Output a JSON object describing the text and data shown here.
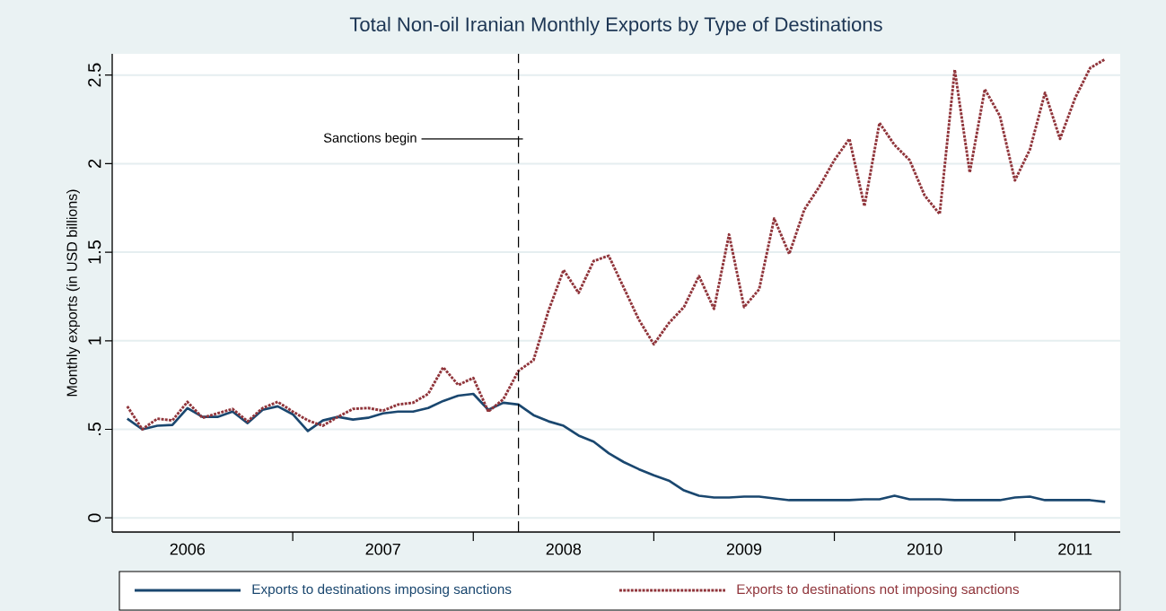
{
  "chart_data": {
    "type": "line",
    "title": "Total Non-oil Iranian Monthly Exports by Type of Destinations",
    "ylabel": "Monthly exports (in USD billions)",
    "x": [
      "2006-02",
      "2006-03",
      "2006-04",
      "2006-05",
      "2006-06",
      "2006-07",
      "2006-08",
      "2006-09",
      "2006-10",
      "2006-11",
      "2006-12",
      "2007-01",
      "2007-02",
      "2007-03",
      "2007-04",
      "2007-05",
      "2007-06",
      "2007-07",
      "2007-08",
      "2007-09",
      "2007-10",
      "2007-11",
      "2007-12",
      "2008-01",
      "2008-02",
      "2008-03",
      "2008-04",
      "2008-05",
      "2008-06",
      "2008-07",
      "2008-08",
      "2008-09",
      "2008-10",
      "2008-11",
      "2008-12",
      "2009-01",
      "2009-02",
      "2009-03",
      "2009-04",
      "2009-05",
      "2009-06",
      "2009-07",
      "2009-08",
      "2009-09",
      "2009-10",
      "2009-11",
      "2009-12",
      "2010-01",
      "2010-02",
      "2010-03",
      "2010-04",
      "2010-05",
      "2010-06",
      "2010-07",
      "2010-08",
      "2010-09",
      "2010-10",
      "2010-11",
      "2010-12",
      "2011-01",
      "2011-02",
      "2011-03",
      "2011-04",
      "2011-05",
      "2011-06",
      "2011-07"
    ],
    "series": [
      {
        "name": "Exports to destinations imposing sanctions",
        "color": "#1a476f",
        "line_style": "solid",
        "values": [
          0.56,
          0.5,
          0.52,
          0.525,
          0.62,
          0.57,
          0.57,
          0.6,
          0.535,
          0.61,
          0.63,
          0.585,
          0.49,
          0.55,
          0.57,
          0.555,
          0.565,
          0.59,
          0.6,
          0.6,
          0.62,
          0.66,
          0.69,
          0.7,
          0.61,
          0.65,
          0.64,
          0.58,
          0.545,
          0.52,
          0.465,
          0.43,
          0.365,
          0.315,
          0.275,
          0.24,
          0.21,
          0.155,
          0.125,
          0.115,
          0.115,
          0.12,
          0.12,
          0.11,
          0.1,
          0.1,
          0.1,
          0.1,
          0.1,
          0.105,
          0.105,
          0.125,
          0.105,
          0.105,
          0.105,
          0.1,
          0.1,
          0.1,
          0.1,
          0.115,
          0.12,
          0.1,
          0.1,
          0.1,
          0.1,
          0.09
        ]
      },
      {
        "name": "Exports to destinations not imposing sanctions",
        "color": "#90353b",
        "line_style": "dotted",
        "values": [
          0.63,
          0.5,
          0.56,
          0.55,
          0.655,
          0.565,
          0.59,
          0.615,
          0.545,
          0.62,
          0.655,
          0.6,
          0.55,
          0.52,
          0.57,
          0.615,
          0.62,
          0.605,
          0.64,
          0.65,
          0.7,
          0.85,
          0.75,
          0.79,
          0.6,
          0.67,
          0.83,
          0.89,
          1.17,
          1.4,
          1.27,
          1.45,
          1.48,
          1.3,
          1.12,
          0.98,
          1.1,
          1.19,
          1.365,
          1.18,
          1.6,
          1.19,
          1.29,
          1.69,
          1.49,
          1.74,
          1.87,
          2.02,
          2.14,
          1.76,
          2.23,
          2.105,
          2.02,
          1.82,
          1.715,
          2.53,
          1.95,
          2.42,
          2.27,
          1.905,
          2.08,
          2.4,
          2.14,
          2.37,
          2.54,
          2.59
        ]
      }
    ],
    "xlim": [
      "2006-01",
      "2011-08"
    ],
    "xticks": [
      {
        "value": "2006-06",
        "label": "2006"
      },
      {
        "value": "2007-01",
        "label": null
      },
      {
        "value": "2007-07",
        "label": "2007"
      },
      {
        "value": "2008-01",
        "label": null
      },
      {
        "value": "2008-07",
        "label": "2008"
      },
      {
        "value": "2009-01",
        "label": null
      },
      {
        "value": "2009-07",
        "label": "2009"
      },
      {
        "value": "2010-01",
        "label": null
      },
      {
        "value": "2010-07",
        "label": "2010"
      },
      {
        "value": "2011-01",
        "label": null
      },
      {
        "value": "2011-05",
        "label": "2011"
      }
    ],
    "ylim": [
      -0.08,
      2.62
    ],
    "yticks": [
      0,
      {
        "value": 0.5,
        "label": ".5"
      },
      1,
      1.5,
      2,
      2.5
    ],
    "grid": "y",
    "legend": "bottom",
    "ref_lines": [
      {
        "axis": "x",
        "value": "2008-04",
        "label": "Sanctions begin",
        "color": "#000000",
        "line_style": "dashed"
      }
    ]
  }
}
